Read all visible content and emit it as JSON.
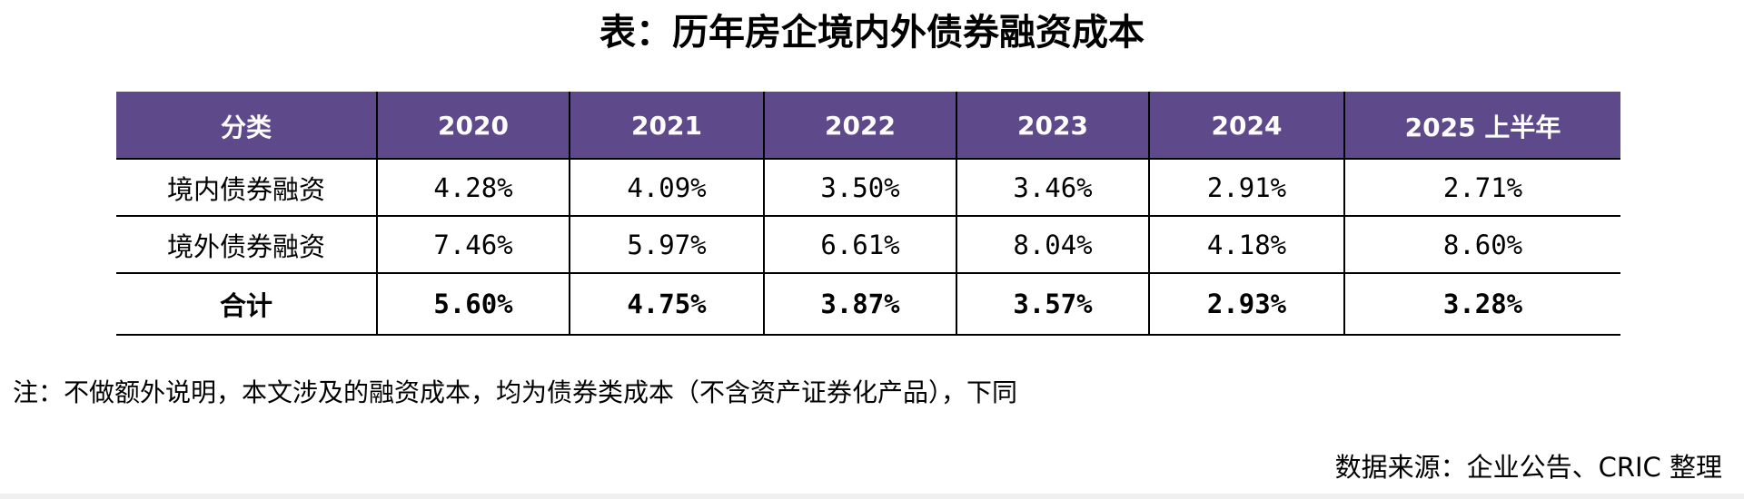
{
  "title": "表：历年房企境内外债券融资成本",
  "table": {
    "headers": [
      "分类",
      "2020",
      "2021",
      "2022",
      "2023",
      "2024",
      "2025 上半年"
    ],
    "rows": [
      {
        "label": "境内债券融资",
        "values": [
          "4.28%",
          "4.09%",
          "3.50%",
          "3.46%",
          "2.91%",
          "2.71%"
        ]
      },
      {
        "label": "境外债券融资",
        "values": [
          "7.46%",
          "5.97%",
          "6.61%",
          "8.04%",
          "4.18%",
          "8.60%"
        ]
      },
      {
        "label": "合计",
        "values": [
          "5.60%",
          "4.75%",
          "3.87%",
          "3.57%",
          "2.93%",
          "3.28%"
        ]
      }
    ]
  },
  "note": "注：不做额外说明，本文涉及的融资成本，均为债券类成本（不含资产证券化产品），下同",
  "source": "数据来源：企业公告、CRIC 整理",
  "colors": {
    "header_background": "#5e4a8a",
    "header_text": "#ffffff",
    "border": "#000000"
  }
}
